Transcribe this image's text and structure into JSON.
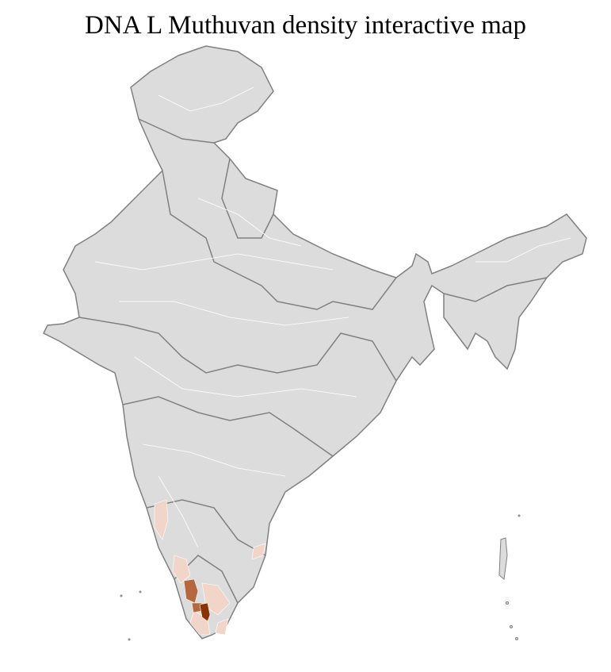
{
  "title": "DNA L Muthuvan density interactive map",
  "colors": {
    "land": "#dcdcdc",
    "district_border": "#ffffff",
    "state_border": "#808080",
    "density_low": "#f0d5c8",
    "density_mid": "#b5683f",
    "density_high": "#8b3200"
  }
}
